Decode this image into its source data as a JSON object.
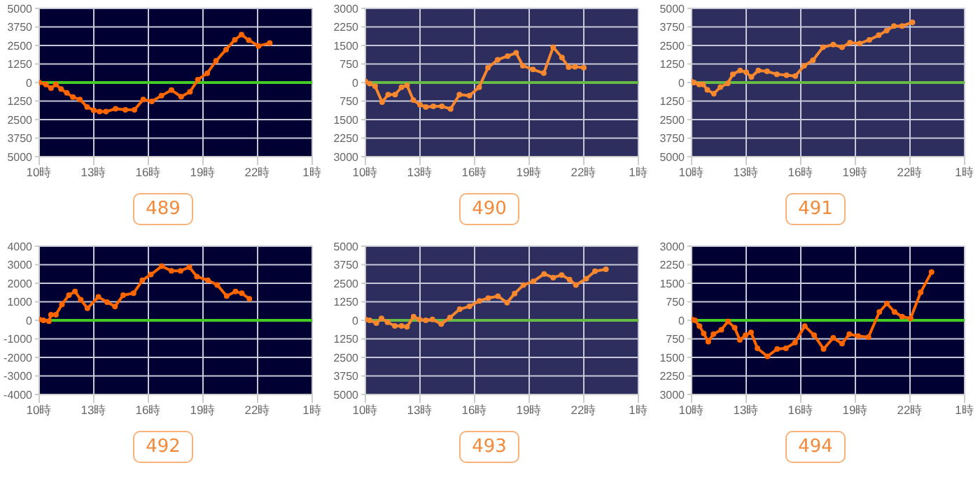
{
  "chart_data": [
    {
      "type": "line",
      "title": "489",
      "x": [
        "--01-01T10:00",
        "--01-01T10:22",
        "--01-01T10:39",
        "--01-01T10:55",
        "--01-01T11:12",
        "--01-01T11:31",
        "--01-01T11:51",
        "--01-01T12:14",
        "--01-01T12:38",
        "--01-01T13:00",
        "--01-01T13:19",
        "--01-01T13:40",
        "--01-01T14:12",
        "--01-01T14:44",
        "--01-01T15:14",
        "--01-01T15:43",
        "--01-01T16:11",
        "--01-01T16:43",
        "--01-01T17:16",
        "--01-01T17:48",
        "--01-01T18:17",
        "--01-01T18:43",
        "--01-01T19:14",
        "--01-01T19:43",
        "--01-01T20:16",
        "--01-01T20:45",
        "--01-01T21:07",
        "--01-01T21:31",
        "--01-01T22:03",
        "--01-01T22:40"
      ],
      "series": [
        {
          "color": "#ff6600",
          "values": [
            0,
            -130,
            -380,
            -130,
            -440,
            -700,
            -980,
            -1140,
            -1650,
            -1870,
            -1960,
            -1960,
            -1770,
            -1840,
            -1840,
            -1140,
            -1270,
            -890,
            -510,
            -950,
            -630,
            190,
            630,
            1460,
            2220,
            2880,
            3230,
            2850,
            2470,
            2660
          ]
        }
      ],
      "xlim": [
        "--01-01T10:00",
        "--01-02T01:00"
      ],
      "xticks": [
        {
          "value": "--01-01T10:00",
          "label": "10時"
        },
        {
          "value": "--01-01T13:00",
          "label": "13時"
        },
        {
          "value": "--01-01T16:00",
          "label": "16時"
        },
        {
          "value": "--01-01T19:00",
          "label": "19時"
        },
        {
          "value": "--01-01T22:00",
          "label": "22時"
        },
        {
          "value": "--01-02T01:00",
          "label": "1時"
        }
      ],
      "ylim": [
        -5000,
        5000
      ],
      "yticks": [
        {
          "value": -5000,
          "label": "5000"
        },
        {
          "value": -3750,
          "label": "3750"
        },
        {
          "value": -2500,
          "label": "2500"
        },
        {
          "value": -1250,
          "label": "1250"
        },
        0,
        1250,
        2500,
        3750,
        5000
      ],
      "ref_lines": [
        {
          "axis": "y",
          "value": 0,
          "color": "#44cc22"
        }
      ],
      "grid": true,
      "marker": "circle",
      "legend": false
    },
    {
      "type": "line",
      "title": "490",
      "x": [
        "--01-01T10:00",
        "--01-01T10:14",
        "--01-01T10:32",
        "--01-01T10:55",
        "--01-01T11:15",
        "--01-01T11:38",
        "--01-01T11:59",
        "--01-01T12:17",
        "--01-01T12:38",
        "--01-01T13:00",
        "--01-01T13:19",
        "--01-01T13:44",
        "--01-01T14:12",
        "--01-01T14:41",
        "--01-01T15:10",
        "--01-01T15:43",
        "--01-01T16:15",
        "--01-01T16:44",
        "--01-01T17:16",
        "--01-01T17:49",
        "--01-01T18:17",
        "--01-01T18:39",
        "--01-01T19:12",
        "--01-01T19:48",
        "--01-01T20:19",
        "--01-01T20:48",
        "--01-01T21:10",
        "--01-01T21:31",
        "--01-01T22:00"
      ],
      "series": [
        {
          "color": "#f7882f",
          "values": [
            40,
            -40,
            -150,
            -790,
            -490,
            -490,
            -190,
            -110,
            -710,
            -900,
            -990,
            -960,
            -960,
            -1070,
            -490,
            -530,
            -190,
            600,
            920,
            1070,
            1200,
            680,
            530,
            380,
            1430,
            1010,
            620,
            640,
            600
          ]
        }
      ],
      "xlim": [
        "--01-01T10:00",
        "--01-02T01:00"
      ],
      "xticks": [
        {
          "value": "--01-01T10:00",
          "label": "10時"
        },
        {
          "value": "--01-01T13:00",
          "label": "13時"
        },
        {
          "value": "--01-01T16:00",
          "label": "16時"
        },
        {
          "value": "--01-01T19:00",
          "label": "19時"
        },
        {
          "value": "--01-01T22:00",
          "label": "22時"
        },
        {
          "value": "--01-02T01:00",
          "label": "1時"
        }
      ],
      "ylim": [
        -3000,
        3000
      ],
      "yticks": [
        {
          "value": -3000,
          "label": "3000"
        },
        {
          "value": -2250,
          "label": "2250"
        },
        {
          "value": -1500,
          "label": "1500"
        },
        {
          "value": -750,
          "label": "750"
        },
        0,
        750,
        1500,
        2250,
        3000
      ],
      "ref_lines": [
        {
          "axis": "y",
          "value": 0,
          "color": "#66bb44"
        }
      ],
      "grid": true,
      "marker": "circle",
      "legend": false
    },
    {
      "type": "line",
      "title": "491",
      "x": [
        "--01-01T10:00",
        "--01-01T10:08",
        "--01-01T10:25",
        "--01-01T10:38",
        "--01-01T10:52",
        "--01-01T11:13",
        "--01-01T11:35",
        "--01-01T11:59",
        "--01-01T12:16",
        "--01-01T12:40",
        "--01-01T13:00",
        "--01-01T13:17",
        "--01-01T13:40",
        "--01-01T14:09",
        "--01-01T14:41",
        "--01-01T15:13",
        "--01-01T15:42",
        "--01-01T16:11",
        "--01-01T16:40",
        "--01-01T17:13",
        "--01-01T17:47",
        "--01-01T18:16",
        "--01-01T18:42",
        "--01-01T19:14",
        "--01-01T19:46",
        "--01-01T20:17",
        "--01-01T20:43",
        "--01-01T21:07",
        "--01-01T21:34",
        "--01-01T22:08"
      ],
      "series": [
        {
          "color": "#f7882f",
          "values": [
            60,
            0,
            -130,
            -130,
            -500,
            -750,
            -310,
            -60,
            560,
            810,
            690,
            380,
            810,
            750,
            560,
            500,
            440,
            1130,
            1500,
            2380,
            2560,
            2380,
            2690,
            2630,
            2880,
            3190,
            3500,
            3810,
            3810,
            4060
          ]
        }
      ],
      "xlim": [
        "--01-01T10:00",
        "--01-02T01:00"
      ],
      "xticks": [
        {
          "value": "--01-01T10:00",
          "label": "10時"
        },
        {
          "value": "--01-01T13:00",
          "label": "13時"
        },
        {
          "value": "--01-01T16:00",
          "label": "16時"
        },
        {
          "value": "--01-01T19:00",
          "label": "19時"
        },
        {
          "value": "--01-01T22:00",
          "label": "22時"
        },
        {
          "value": "--01-02T01:00",
          "label": "1時"
        }
      ],
      "ylim": [
        -5000,
        5000
      ],
      "yticks": [
        {
          "value": -5000,
          "label": "5000"
        },
        {
          "value": -3750,
          "label": "3750"
        },
        {
          "value": -2500,
          "label": "2500"
        },
        {
          "value": -1250,
          "label": "1250"
        },
        0,
        1250,
        2500,
        3750,
        5000
      ],
      "ref_lines": [
        {
          "axis": "y",
          "value": 0,
          "color": "#66bb44"
        }
      ],
      "grid": true,
      "marker": "circle",
      "legend": false
    },
    {
      "type": "line",
      "title": "492",
      "x": [
        "--01-01T10:00",
        "--01-01T10:14",
        "--01-01T10:32",
        "--01-01T10:39",
        "--01-01T10:55",
        "--01-01T11:15",
        "--01-01T11:38",
        "--01-01T11:58",
        "--01-01T12:17",
        "--01-01T12:39",
        "--01-01T13:15",
        "--01-01T13:44",
        "--01-01T14:10",
        "--01-01T14:37",
        "--01-01T15:11",
        "--01-01T15:40",
        "--01-01T16:08",
        "--01-01T16:44",
        "--01-01T17:16",
        "--01-01T17:46",
        "--01-01T18:15",
        "--01-01T18:40",
        "--01-01T19:16",
        "--01-01T19:47",
        "--01-01T20:18",
        "--01-01T20:47",
        "--01-01T21:08",
        "--01-01T21:33"
      ],
      "series": [
        {
          "color": "#ff6600",
          "values": [
            50,
            0,
            -50,
            300,
            300,
            860,
            1360,
            1560,
            1110,
            650,
            1260,
            980,
            750,
            1360,
            1460,
            2160,
            2470,
            2920,
            2670,
            2670,
            2870,
            2360,
            2160,
            1910,
            1310,
            1560,
            1460,
            1160
          ]
        }
      ],
      "xlim": [
        "--01-01T10:00",
        "--01-02T01:00"
      ],
      "xticks": [
        {
          "value": "--01-01T10:00",
          "label": "10時"
        },
        {
          "value": "--01-01T13:00",
          "label": "13時"
        },
        {
          "value": "--01-01T16:00",
          "label": "16時"
        },
        {
          "value": "--01-01T19:00",
          "label": "19時"
        },
        {
          "value": "--01-01T22:00",
          "label": "22時"
        },
        {
          "value": "--01-02T01:00",
          "label": "1時"
        }
      ],
      "ylim": [
        -4000,
        4000
      ],
      "yticks": [
        -4000,
        -3000,
        -2000,
        -1000,
        0,
        1000,
        2000,
        3000,
        4000
      ],
      "ref_lines": [
        {
          "axis": "y",
          "value": 0,
          "color": "#44cc22"
        }
      ],
      "grid": true,
      "marker": "circle",
      "legend": false
    },
    {
      "type": "line",
      "title": "493",
      "x": [
        "--01-01T10:00",
        "--01-01T10:14",
        "--01-01T10:36",
        "--01-01T10:53",
        "--01-01T11:13",
        "--01-01T11:37",
        "--01-01T11:59",
        "--01-01T12:17",
        "--01-01T12:39",
        "--01-01T12:58",
        "--01-01T13:19",
        "--01-01T13:41",
        "--01-01T14:10",
        "--01-01T14:39",
        "--01-01T15:11",
        "--01-01T15:43",
        "--01-01T16:16",
        "--01-01T16:45",
        "--01-01T17:17",
        "--01-01T17:47",
        "--01-01T18:12",
        "--01-01T18:41",
        "--01-01T19:14",
        "--01-01T19:49",
        "--01-01T20:19",
        "--01-01T20:47",
        "--01-01T21:13",
        "--01-01T21:34",
        "--01-01T22:08",
        "--01-01T22:37",
        "--01-01T23:13"
      ],
      "series": [
        {
          "color": "#f7882f",
          "values": [
            60,
            0,
            -190,
            130,
            -130,
            -380,
            -380,
            -440,
            250,
            60,
            0,
            60,
            -250,
            190,
            750,
            940,
            1310,
            1500,
            1630,
            1190,
            1810,
            2380,
            2630,
            3130,
            2880,
            3060,
            2750,
            2380,
            2810,
            3310,
            3440
          ]
        }
      ],
      "xlim": [
        "--01-01T10:00",
        "--01-02T01:00"
      ],
      "xticks": [
        {
          "value": "--01-01T10:00",
          "label": "10時"
        },
        {
          "value": "--01-01T13:00",
          "label": "13時"
        },
        {
          "value": "--01-01T16:00",
          "label": "16時"
        },
        {
          "value": "--01-01T19:00",
          "label": "19時"
        },
        {
          "value": "--01-01T22:00",
          "label": "22時"
        },
        {
          "value": "--01-02T01:00",
          "label": "1時"
        }
      ],
      "ylim": [
        -5000,
        5000
      ],
      "yticks": [
        {
          "value": -5000,
          "label": "5000"
        },
        {
          "value": -3750,
          "label": "3750"
        },
        {
          "value": -2500,
          "label": "2500"
        },
        {
          "value": -1250,
          "label": "1250"
        },
        0,
        1250,
        2500,
        3750,
        5000
      ],
      "ref_lines": [
        {
          "axis": "y",
          "value": 0,
          "color": "#66bb44"
        }
      ],
      "grid": true,
      "marker": "circle",
      "legend": false
    },
    {
      "type": "line",
      "title": "494",
      "x": [
        "--01-01T10:00",
        "--01-01T10:11",
        "--01-01T10:26",
        "--01-01T10:40",
        "--01-01T10:55",
        "--01-01T11:12",
        "--01-01T11:38",
        "--01-01T12:00",
        "--01-01T12:22",
        "--01-01T12:39",
        "--01-01T12:58",
        "--01-01T13:16",
        "--01-01T13:37",
        "--01-01T14:10",
        "--01-01T14:42",
        "--01-01T15:11",
        "--01-01T15:41",
        "--01-01T16:13",
        "--01-01T16:44",
        "--01-01T17:15",
        "--01-01T17:47",
        "--01-01T18:16",
        "--01-01T18:40",
        "--01-01T19:09",
        "--01-01T19:43",
        "--01-01T20:19",
        "--01-01T20:44",
        "--01-01T21:09",
        "--01-01T21:34",
        "--01-01T22:02",
        "--01-01T22:35",
        "--01-01T23:11"
      ],
      "series": [
        {
          "color": "#ff6600",
          "values": [
            40,
            0,
            -230,
            -530,
            -860,
            -560,
            -380,
            -40,
            -300,
            -790,
            -600,
            -490,
            -1130,
            -1460,
            -1160,
            -1130,
            -900,
            -230,
            -600,
            -1160,
            -710,
            -940,
            -560,
            -640,
            -680,
            340,
            680,
            340,
            150,
            80,
            1130,
            1950
          ]
        }
      ],
      "xlim": [
        "--01-01T10:00",
        "--01-02T01:00"
      ],
      "xticks": [
        {
          "value": "--01-01T10:00",
          "label": "10時"
        },
        {
          "value": "--01-01T13:00",
          "label": "13時"
        },
        {
          "value": "--01-01T16:00",
          "label": "16時"
        },
        {
          "value": "--01-01T19:00",
          "label": "19時"
        },
        {
          "value": "--01-01T22:00",
          "label": "22時"
        },
        {
          "value": "--01-02T01:00",
          "label": "1時"
        }
      ],
      "ylim": [
        -3000,
        3000
      ],
      "yticks": [
        {
          "value": -3000,
          "label": "3000"
        },
        {
          "value": -2250,
          "label": "2250"
        },
        {
          "value": -1500,
          "label": "1500"
        },
        {
          "value": -750,
          "label": "750"
        },
        0,
        750,
        1500,
        2250,
        3000
      ],
      "ref_lines": [
        {
          "axis": "y",
          "value": 0,
          "color": "#44cc22"
        }
      ],
      "grid": true,
      "marker": "circle",
      "legend": false
    }
  ]
}
